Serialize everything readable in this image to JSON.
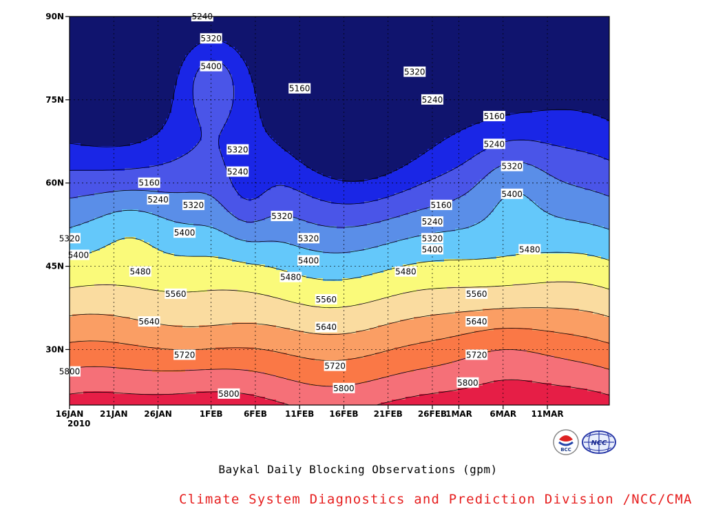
{
  "chart_data": {
    "type": "contour",
    "caption": "Baykal Daily Blocking Observations (gpm)",
    "x_tick_labels": [
      "16JAN",
      "21JAN",
      "26JAN",
      "1FEB",
      "6FEB",
      "11FEB",
      "16FEB",
      "21FEB",
      "26FEB",
      "1MAR",
      "6MAR",
      "11MAR"
    ],
    "x_year_label": "2010",
    "y_tick_labels": [
      "30N",
      "45N",
      "60N",
      "75N",
      "90N"
    ],
    "ylim": [
      "20N",
      "90N"
    ],
    "grid": true,
    "levels": [
      5160,
      5240,
      5320,
      5400,
      5480,
      5560,
      5640,
      5720,
      5800,
      5880
    ],
    "fill_colors": {
      "below_5160": "#10146e",
      "5160_5240": "#1a26e6",
      "5240_5320": "#4a55e8",
      "5320_5400": "#5a8ee8",
      "5400_5480": "#64c8fa",
      "5480_5560": "#fafa7a",
      "5560_5640": "#fadca0",
      "5640_5720": "#fa9e64",
      "5720_5800": "#fa7846",
      "5800_5880": "#f57078",
      "above_5880": "#e61e46"
    },
    "contour_labels": [
      {
        "text": "5800",
        "date": "16JAN",
        "lat": "26N"
      },
      {
        "text": "5320",
        "date": "16JAN",
        "lat": "50N"
      },
      {
        "text": "5400",
        "date": "17JAN",
        "lat": "47N"
      },
      {
        "text": "5480",
        "date": "24JAN",
        "lat": "44N"
      },
      {
        "text": "5560",
        "date": "28JAN",
        "lat": "40N"
      },
      {
        "text": "5640",
        "date": "25JAN",
        "lat": "35N"
      },
      {
        "text": "5720",
        "date": "29JAN",
        "lat": "29N"
      },
      {
        "text": "5800",
        "date": "3FEB",
        "lat": "22N"
      },
      {
        "text": "5160",
        "date": "25JAN",
        "lat": "60N"
      },
      {
        "text": "5240",
        "date": "26JAN",
        "lat": "57N"
      },
      {
        "text": "5320",
        "date": "30JAN",
        "lat": "56N"
      },
      {
        "text": "5400",
        "date": "29JAN",
        "lat": "51N"
      },
      {
        "text": "5240",
        "date": "31JAN",
        "lat": "90N"
      },
      {
        "text": "5320",
        "date": "1FEB",
        "lat": "86N"
      },
      {
        "text": "5400",
        "date": "1FEB",
        "lat": "81N"
      },
      {
        "text": "5320",
        "date": "4FEB",
        "lat": "66N"
      },
      {
        "text": "5240",
        "date": "4FEB",
        "lat": "62N"
      },
      {
        "text": "5160",
        "date": "11FEB",
        "lat": "77N"
      },
      {
        "text": "5320",
        "date": "9FEB",
        "lat": "54N"
      },
      {
        "text": "5320",
        "date": "12FEB",
        "lat": "50N"
      },
      {
        "text": "5400",
        "date": "12FEB",
        "lat": "46N"
      },
      {
        "text": "5480",
        "date": "10FEB",
        "lat": "43N"
      },
      {
        "text": "5560",
        "date": "14FEB",
        "lat": "39N"
      },
      {
        "text": "5640",
        "date": "14FEB",
        "lat": "34N"
      },
      {
        "text": "5720",
        "date": "15FEB",
        "lat": "27N"
      },
      {
        "text": "5800",
        "date": "16FEB",
        "lat": "23N"
      },
      {
        "text": "5320",
        "date": "24FEB",
        "lat": "80N"
      },
      {
        "text": "5240",
        "date": "26FEB",
        "lat": "75N"
      },
      {
        "text": "5160",
        "date": "27FEB",
        "lat": "56N"
      },
      {
        "text": "5240",
        "date": "26FEB",
        "lat": "53N"
      },
      {
        "text": "5320",
        "date": "26FEB",
        "lat": "50N"
      },
      {
        "text": "5400",
        "date": "26FEB",
        "lat": "48N"
      },
      {
        "text": "5480",
        "date": "23FEB",
        "lat": "44N"
      },
      {
        "text": "5560",
        "date": "3MAR",
        "lat": "40N"
      },
      {
        "text": "5640",
        "date": "3MAR",
        "lat": "35N"
      },
      {
        "text": "5720",
        "date": "3MAR",
        "lat": "29N"
      },
      {
        "text": "5800",
        "date": "2MAR",
        "lat": "24N"
      },
      {
        "text": "5160",
        "date": "5MAR",
        "lat": "72N"
      },
      {
        "text": "5240",
        "date": "5MAR",
        "lat": "67N"
      },
      {
        "text": "5320",
        "date": "7MAR",
        "lat": "63N"
      },
      {
        "text": "5400",
        "date": "7MAR",
        "lat": "58N"
      },
      {
        "text": "5480",
        "date": "9MAR",
        "lat": "48N"
      }
    ]
  },
  "caption": "Baykal Daily Blocking Observations (gpm)",
  "credit": {
    "text": "Climate System Diagnostics and Prediction Division /NCC/CMA",
    "color": "#e61e1e"
  },
  "logos": {
    "left": {
      "icon": "bcc-logo-icon",
      "text": "BCC"
    },
    "right": {
      "icon": "ncc-logo-icon",
      "text": "NCC"
    }
  }
}
